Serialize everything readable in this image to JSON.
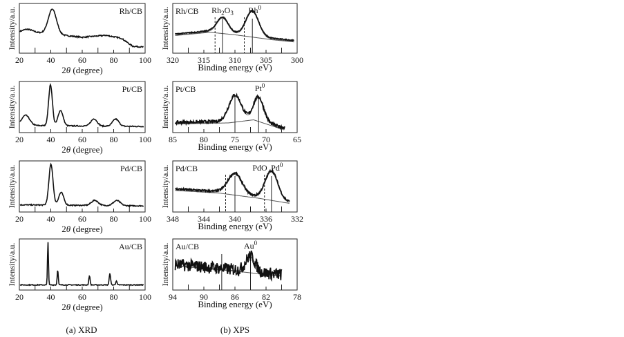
{
  "captions": {
    "xrd": "(a) XRD",
    "xps": "(b) XPS"
  },
  "chart_data": [
    {
      "type": "line",
      "panel": "xrd",
      "title": "Rh/CB",
      "xlabel_prefix": "2",
      "xlabel_symbol": "θ",
      "xlabel_suffix": " (degree)",
      "ylabel": "Intensity/a.u.",
      "xlim": [
        20,
        100
      ],
      "ticks": [
        20,
        40,
        60,
        80,
        100
      ],
      "baseline": [
        [
          20,
          0.42
        ],
        [
          30,
          0.42
        ],
        [
          60,
          0.32
        ],
        [
          75,
          0.36
        ],
        [
          85,
          0.3
        ],
        [
          92,
          0.14
        ],
        [
          100,
          0.12
        ]
      ],
      "peaks": [
        {
          "c": 41,
          "h": 0.5,
          "w": 2.6
        },
        {
          "c": 25,
          "h": 0.06,
          "w": 3
        }
      ],
      "noise": 0.012,
      "series_end": 99
    },
    {
      "type": "line",
      "panel": "xrd",
      "title": "Pt/CB",
      "xlabel_prefix": "2",
      "xlabel_symbol": "θ",
      "xlabel_suffix": " (degree)",
      "ylabel": "Intensity/a.u.",
      "xlim": [
        20,
        100
      ],
      "ticks": [
        20,
        40,
        60,
        80,
        100
      ],
      "baseline": [
        [
          20,
          0.14
        ],
        [
          100,
          0.12
        ]
      ],
      "peaks": [
        {
          "c": 39.8,
          "h": 0.8,
          "w": 1.2
        },
        {
          "c": 46.2,
          "h": 0.3,
          "w": 1.6
        },
        {
          "c": 67.5,
          "h": 0.14,
          "w": 2
        },
        {
          "c": 81.3,
          "h": 0.14,
          "w": 2
        },
        {
          "c": 24,
          "h": 0.2,
          "w": 2.5
        }
      ],
      "noise": 0.01,
      "series_end": 99
    },
    {
      "type": "line",
      "panel": "xrd",
      "title": "Pd/CB",
      "xlabel_prefix": "2",
      "xlabel_symbol": "θ",
      "xlabel_suffix": " (degree)",
      "ylabel": "Intensity/a.u.",
      "xlim": [
        20,
        100
      ],
      "ticks": [
        20,
        40,
        60,
        80,
        100
      ],
      "baseline": [
        [
          20,
          0.14
        ],
        [
          100,
          0.12
        ]
      ],
      "peaks": [
        {
          "c": 40.1,
          "h": 0.8,
          "w": 1.3
        },
        {
          "c": 46.6,
          "h": 0.25,
          "w": 1.6
        },
        {
          "c": 68,
          "h": 0.1,
          "w": 2.2
        },
        {
          "c": 82,
          "h": 0.1,
          "w": 2.2
        }
      ],
      "noise": 0.01,
      "series_end": 99
    },
    {
      "type": "line",
      "panel": "xrd",
      "title": "Au/CB",
      "xlabel_prefix": "2",
      "xlabel_symbol": "θ",
      "xlabel_suffix": " (degree)",
      "ylabel": "Intensity/a.u.",
      "xlim": [
        20,
        100
      ],
      "ticks": [
        20,
        40,
        60,
        80,
        100
      ],
      "baseline": [
        [
          20,
          0.1
        ],
        [
          100,
          0.1
        ]
      ],
      "peaks": [
        {
          "c": 38.2,
          "h": 0.85,
          "w": 0.3
        },
        {
          "c": 44.4,
          "h": 0.3,
          "w": 0.35
        },
        {
          "c": 64.6,
          "h": 0.18,
          "w": 0.4
        },
        {
          "c": 77.6,
          "h": 0.22,
          "w": 0.45
        },
        {
          "c": 81.7,
          "h": 0.08,
          "w": 0.4
        }
      ],
      "noise": 0.008,
      "series_end": 99
    },
    {
      "type": "line",
      "panel": "xps",
      "title": "Rh/CB",
      "xlabel": "Binding energy (eV)",
      "ylabel": "Intensity/a.u.",
      "xlim": [
        320,
        300
      ],
      "ticks": [
        320,
        315,
        310,
        305,
        300
      ],
      "baseline": [
        [
          320,
          0.38
        ],
        [
          314,
          0.45
        ],
        [
          310,
          0.4
        ],
        [
          304,
          0.3
        ],
        [
          300,
          0.25
        ]
      ],
      "peaks": [
        {
          "c": 312,
          "h": 0.3,
          "w": 0.9
        },
        {
          "c": 307.2,
          "h": 0.5,
          "w": 1.0
        }
      ],
      "noise": 0.01,
      "series_end": 300.5,
      "solid_lines": [
        312,
        307.2
      ],
      "dashed_lines": [
        313.2,
        308.5
      ],
      "annotations": [
        {
          "text": "Rh",
          "sub": "2",
          "mid": "O",
          "sub2": "3",
          "x": 312
        },
        {
          "text": "Rh",
          "sup": "0",
          "x": 306.8
        }
      ]
    },
    {
      "type": "line",
      "panel": "xps",
      "title": "Pt/CB",
      "xlabel": "Binding energy (eV)",
      "ylabel": "Intensity/a.u.",
      "xlim": [
        85,
        65
      ],
      "ticks": [
        85,
        80,
        75,
        70,
        65
      ],
      "baseline": [
        [
          84,
          0.2
        ],
        [
          76,
          0.22
        ],
        [
          72,
          0.28
        ],
        [
          68,
          0.12
        ],
        [
          67,
          0.1
        ]
      ],
      "peaks": [
        {
          "c": 75,
          "h": 0.5,
          "w": 1.0
        },
        {
          "c": 71.2,
          "h": 0.45,
          "w": 0.8
        }
      ],
      "noise": 0.03,
      "series_end": 67,
      "solid_lines": [
        75,
        71.2
      ],
      "dashed_lines": [],
      "annotations": [
        {
          "text": "Pt",
          "sup": "0",
          "x": 71
        }
      ]
    },
    {
      "type": "line",
      "panel": "xps",
      "title": "Pd/CB",
      "xlabel": "Binding energy (eV)",
      "ylabel": "Intensity/a.u.",
      "xlim": [
        348,
        332
      ],
      "ticks": [
        348,
        344,
        340,
        336,
        332
      ],
      "baseline": [
        [
          347.5,
          0.45
        ],
        [
          342,
          0.4
        ],
        [
          337,
          0.3
        ],
        [
          333,
          0.2
        ]
      ],
      "peaks": [
        {
          "c": 340,
          "h": 0.4,
          "w": 0.9
        },
        {
          "c": 335.3,
          "h": 0.55,
          "w": 0.8
        }
      ],
      "noise": 0.02,
      "series_end": 333,
      "solid_lines": [
        340,
        335.3
      ],
      "dashed_lines": [
        341.2,
        336.2
      ],
      "annotations": [
        {
          "text": "PdO",
          "x": 336.8
        },
        {
          "text": "Pd",
          "sup": "0",
          "x": 334.6
        }
      ]
    },
    {
      "type": "line",
      "panel": "xps",
      "title": "Au/CB",
      "xlabel": "Binding energy (eV)",
      "ylabel": "Intensity/a.u.",
      "xlim": [
        94,
        78
      ],
      "ticks": [
        94,
        90,
        86,
        82,
        78
      ],
      "baseline": [
        [
          93.5,
          0.5
        ],
        [
          86,
          0.4
        ],
        [
          80,
          0.3
        ]
      ],
      "peaks": [
        {
          "c": 84,
          "h": 0.3,
          "w": 0.6
        }
      ],
      "noise": 0.12,
      "series_end": 80,
      "solid_lines": [
        87.7,
        84
      ],
      "dashed_lines": [],
      "annotations": [
        {
          "text": "Au",
          "sup": "0",
          "x": 84
        }
      ]
    }
  ]
}
